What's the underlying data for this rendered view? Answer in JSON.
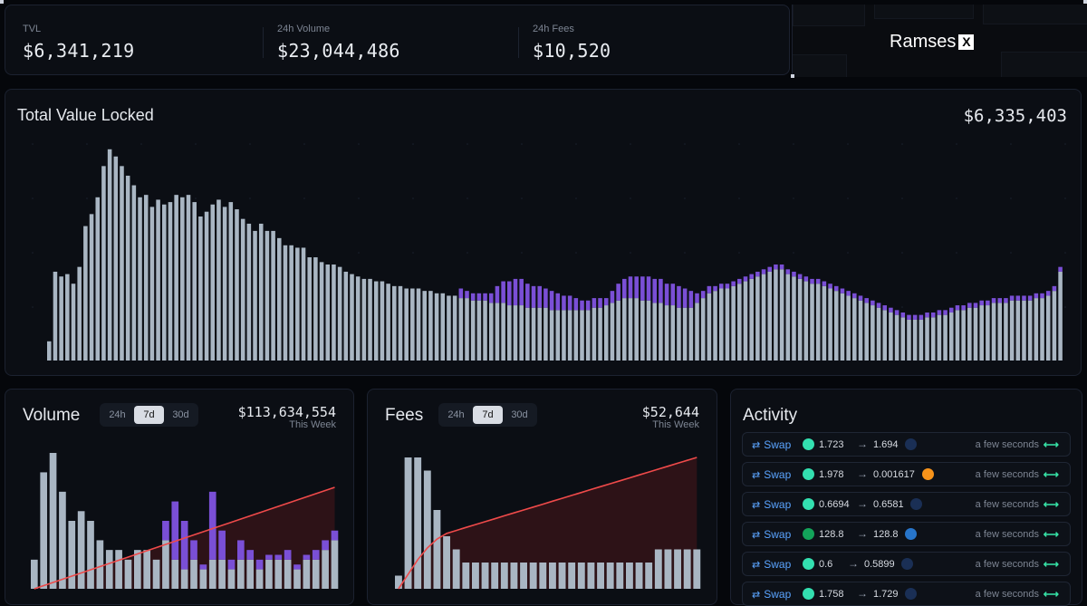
{
  "stats": {
    "tvl_label": "TVL",
    "tvl_value": "$6,341,219",
    "volume_label": "24h Volume",
    "volume_value": "$23,044,486",
    "fees_label": "24h Fees",
    "fees_value": "$10,520"
  },
  "brand": {
    "name": "Ramses",
    "mark": "X"
  },
  "tvl_chart": {
    "title": "Total Value Locked",
    "total": "$6,335,403",
    "colors": {
      "base": "#a9b6c3",
      "overlay": "#7a4fd6"
    }
  },
  "volume": {
    "title": "Volume",
    "tabs": [
      "24h",
      "7d",
      "30d"
    ],
    "active_tab": "7d",
    "amount": "$113,634,554",
    "subtitle": "This Week"
  },
  "fees": {
    "title": "Fees",
    "tabs": [
      "24h",
      "7d",
      "30d"
    ],
    "active_tab": "7d",
    "amount": "$52,644",
    "subtitle": "This Week"
  },
  "activity": {
    "title": "Activity",
    "rows": [
      {
        "type": "Swap",
        "token_in_icon": "teal-token-icon",
        "amount_in": "1.723",
        "token_out_icon": "dark-token-icon",
        "amount_out": "1.694",
        "time": "a few seconds",
        "link_icon": "explorer-icon"
      },
      {
        "type": "Swap",
        "token_in_icon": "teal-token-icon",
        "amount_in": "1.978",
        "token_out_icon": "btc-token-icon",
        "amount_out": "0.001617",
        "time": "a few seconds",
        "link_icon": "explorer-icon"
      },
      {
        "type": "Swap",
        "token_in_icon": "teal-token-icon",
        "amount_in": "0.6694",
        "token_out_icon": "dark-token-icon",
        "amount_out": "0.6581",
        "time": "a few seconds",
        "link_icon": "explorer-icon"
      },
      {
        "type": "Swap",
        "token_in_icon": "green-dollar-token-icon",
        "amount_in": "128.8",
        "token_out_icon": "usdc-token-icon",
        "amount_out": "128.8",
        "time": "a few seconds",
        "link_icon": "explorer-icon"
      },
      {
        "type": "Swap",
        "token_in_icon": "teal-token-icon",
        "amount_in": "0.6",
        "token_out_icon": "dark-token-icon",
        "amount_out": "0.5899",
        "time": "a few seconds",
        "link_icon": "explorer-icon"
      },
      {
        "type": "Swap",
        "token_in_icon": "teal-token-icon",
        "amount_in": "1.758",
        "token_out_icon": "dark-token-icon",
        "amount_out": "1.729",
        "time": "a few seconds",
        "link_icon": "explorer-icon"
      }
    ]
  },
  "chart_data": [
    {
      "type": "bar",
      "title": "Total Value Locked",
      "stacked": true,
      "series": [
        {
          "values": [
            0.8,
            3.7,
            3.5,
            3.6,
            3.2,
            3.9,
            5.6,
            6.1,
            6.8,
            8.1,
            8.8,
            8.5,
            8.1,
            7.7,
            7.3,
            6.8,
            6.9,
            6.4,
            6.7,
            6.5,
            6.6,
            6.9,
            6.8,
            6.9,
            6.6,
            6.0,
            6.2,
            6.5,
            6.7,
            6.4,
            6.6,
            6.3,
            5.9,
            5.7,
            5.4,
            5.7,
            5.4,
            5.4,
            5.1,
            4.8,
            4.8,
            4.7,
            4.7,
            4.3,
            4.3,
            4.1,
            4.0,
            4.0,
            3.9,
            3.7,
            3.6,
            3.5,
            3.4,
            3.4,
            3.3,
            3.3,
            3.2,
            3.1,
            3.1,
            3.0,
            3.0,
            3.0,
            2.9,
            2.9,
            2.8,
            2.8,
            2.7,
            2.7,
            2.6,
            2.6,
            2.5,
            2.5,
            2.5,
            2.4,
            2.4,
            2.4,
            2.3,
            2.3,
            2.3,
            2.2,
            2.2,
            2.2,
            2.2,
            2.1,
            2.1,
            2.1,
            2.1,
            2.1,
            2.1,
            2.1,
            2.2,
            2.2,
            2.3,
            2.4,
            2.5,
            2.6,
            2.6,
            2.6,
            2.5,
            2.5,
            2.4,
            2.4,
            2.3,
            2.3,
            2.2,
            2.2,
            2.2,
            2.4,
            2.6,
            2.8,
            2.9,
            3.0,
            3.0,
            3.1,
            3.2,
            3.3,
            3.4,
            3.5,
            3.6,
            3.7,
            3.8,
            3.8,
            3.6,
            3.5,
            3.4,
            3.3,
            3.2,
            3.2,
            3.1,
            3.0,
            2.9,
            2.8,
            2.7,
            2.6,
            2.5,
            2.4,
            2.3,
            2.2,
            2.1,
            2.0,
            1.9,
            1.8,
            1.7,
            1.7,
            1.7,
            1.8,
            1.8,
            1.9,
            1.9,
            2.0,
            2.1,
            2.1,
            2.2,
            2.2,
            2.3,
            2.3,
            2.4,
            2.4,
            2.4,
            2.5,
            2.5,
            2.5,
            2.5,
            2.6,
            2.6,
            2.7,
            2.9,
            3.7
          ]
        },
        {
          "values": [
            0,
            0,
            0,
            0,
            0,
            0,
            0,
            0,
            0,
            0,
            0,
            0,
            0,
            0,
            0,
            0,
            0,
            0,
            0,
            0,
            0,
            0,
            0,
            0,
            0,
            0,
            0,
            0,
            0,
            0,
            0,
            0,
            0,
            0,
            0,
            0,
            0,
            0,
            0,
            0,
            0,
            0,
            0,
            0,
            0,
            0,
            0,
            0,
            0,
            0,
            0,
            0,
            0,
            0,
            0,
            0,
            0,
            0,
            0,
            0,
            0,
            0,
            0,
            0,
            0,
            0,
            0,
            0,
            0.4,
            0.3,
            0.3,
            0.3,
            0.3,
            0.4,
            0.7,
            0.9,
            1.0,
            1.1,
            1.1,
            1.0,
            0.9,
            0.9,
            0.8,
            0.8,
            0.7,
            0.6,
            0.6,
            0.5,
            0.4,
            0.4,
            0.4,
            0.4,
            0.3,
            0.5,
            0.7,
            0.8,
            0.9,
            0.9,
            1.0,
            1.0,
            1.0,
            1.0,
            0.9,
            0.9,
            0.9,
            0.8,
            0.7,
            0.4,
            0.3,
            0.3,
            0.2,
            0.2,
            0.2,
            0.2,
            0.2,
            0.2,
            0.2,
            0.2,
            0.2,
            0.2,
            0.2,
            0.2,
            0.2,
            0.2,
            0.2,
            0.2,
            0.2,
            0.2,
            0.2,
            0.2,
            0.2,
            0.2,
            0.2,
            0.2,
            0.2,
            0.2,
            0.2,
            0.2,
            0.2,
            0.2,
            0.2,
            0.2,
            0.2,
            0.2,
            0.2,
            0.2,
            0.2,
            0.2,
            0.2,
            0.2,
            0.2,
            0.2,
            0.2,
            0.2,
            0.2,
            0.2,
            0.2,
            0.2,
            0.2,
            0.2,
            0.2,
            0.2,
            0.2,
            0.2,
            0.2,
            0.2,
            0.2,
            0.2,
            0.2,
            0.2,
            0.3,
            0.3
          ]
        }
      ]
    },
    {
      "type": "bar",
      "title": "Volume",
      "stacked": true,
      "series": [
        {
          "values": [
            3,
            12,
            14,
            10,
            7,
            8,
            7,
            5,
            4,
            4,
            3,
            4,
            4,
            3,
            5,
            3,
            2,
            3,
            2,
            3,
            3,
            2,
            3,
            3,
            2,
            3,
            3,
            3,
            2,
            3,
            3,
            4,
            5
          ]
        },
        {
          "values": [
            0,
            0,
            0,
            0,
            0,
            0,
            0,
            0,
            0,
            0,
            0,
            0,
            0,
            0,
            2,
            6,
            5,
            2,
            0.5,
            7,
            3,
            1,
            2,
            1,
            1,
            0.5,
            0.5,
            1,
            0.5,
            0.5,
            1,
            1,
            1
          ]
        }
      ],
      "cumulative_line": [
        0,
        2,
        4,
        6,
        8,
        10,
        12,
        14,
        16,
        18,
        20,
        22,
        24,
        26,
        28,
        30,
        32,
        34,
        36,
        38,
        40,
        42,
        44,
        46,
        48,
        50,
        52,
        54,
        56,
        58,
        60,
        62,
        64
      ]
    },
    {
      "type": "bar",
      "title": "Fees",
      "stacked": true,
      "series": [
        {
          "values": [
            1,
            10,
            10,
            9,
            6,
            4,
            3,
            2,
            2,
            2,
            2,
            2,
            2,
            2,
            2,
            2,
            2,
            2,
            2,
            2,
            2,
            2,
            2,
            2,
            2,
            2,
            2,
            3,
            3,
            3,
            3,
            3
          ]
        },
        {
          "values": [
            0,
            0,
            0,
            0,
            0,
            0,
            0,
            0,
            0,
            0,
            0,
            0,
            0,
            0,
            0,
            0,
            0,
            0,
            0,
            0,
            0,
            0,
            0,
            0,
            0,
            0,
            0,
            0,
            0,
            0,
            0,
            0
          ]
        }
      ],
      "cumulative_line": [
        0,
        10,
        20,
        28,
        34,
        38,
        40,
        42,
        44,
        46,
        48,
        50,
        52,
        54,
        56,
        58,
        60,
        62,
        64,
        66,
        68,
        70,
        72,
        74,
        76,
        78,
        80,
        82,
        84,
        86,
        88,
        90
      ]
    }
  ]
}
